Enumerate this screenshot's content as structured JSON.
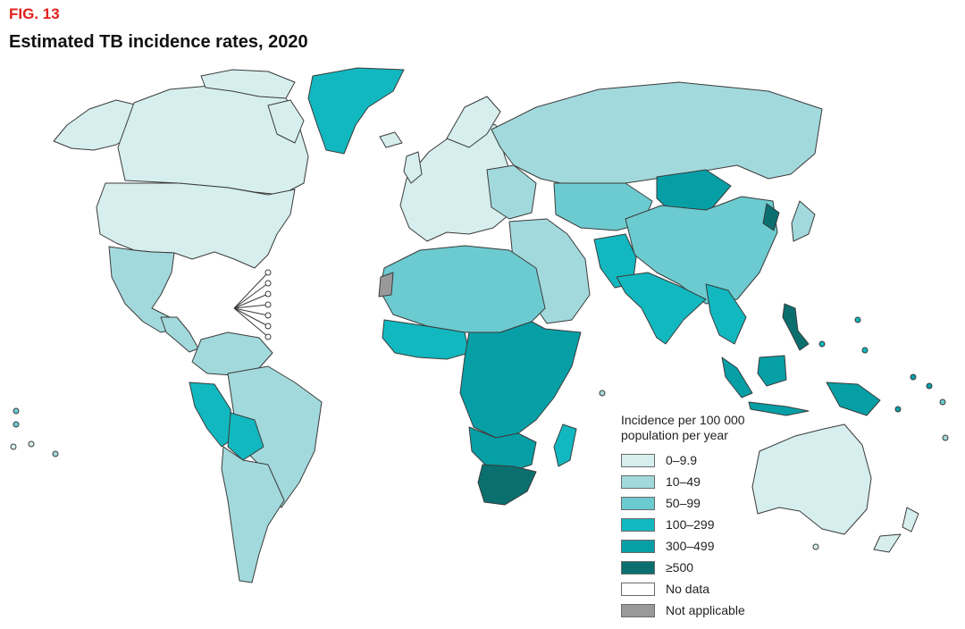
{
  "figure": {
    "label": "FIG. 13",
    "title": "Estimated TB incidence rates, 2020"
  },
  "legend": {
    "title_line1": "Incidence per 100 000",
    "title_line2": "population per year",
    "items": [
      {
        "label": "0–9.9",
        "color": "#d6eeee"
      },
      {
        "label": "10–49",
        "color": "#a2d9dc"
      },
      {
        "label": "50–99",
        "color": "#6ccbd0"
      },
      {
        "label": "100–299",
        "color": "#12b8bf"
      },
      {
        "label": "300–499",
        "color": "#079fa6"
      },
      {
        "label": "≥500",
        "color": "#0b6f70"
      },
      {
        "label": "No data",
        "color": "#ffffff"
      },
      {
        "label": "Not applicable",
        "color": "#999999"
      }
    ]
  },
  "regions": [
    {
      "name": "greenland",
      "class": "100–299"
    },
    {
      "name": "canada",
      "class": "0–9.9"
    },
    {
      "name": "alaska",
      "class": "0–9.9"
    },
    {
      "name": "united-states",
      "class": "0–9.9"
    },
    {
      "name": "mexico",
      "class": "10–49"
    },
    {
      "name": "central-america",
      "class": "10–49"
    },
    {
      "name": "brazil",
      "class": "10–49"
    },
    {
      "name": "peru",
      "class": "100–299"
    },
    {
      "name": "bolivia",
      "class": "100–299"
    },
    {
      "name": "europe",
      "class": "0–9.9"
    },
    {
      "name": "russia",
      "class": "10–49"
    },
    {
      "name": "china",
      "class": "50–99"
    },
    {
      "name": "mongolia",
      "class": "300–499"
    },
    {
      "name": "india",
      "class": "100–299"
    },
    {
      "name": "north-africa",
      "class": "50–99"
    },
    {
      "name": "central-africa",
      "class": "300–499"
    },
    {
      "name": "south-africa",
      "class": "≥500"
    },
    {
      "name": "madagascar",
      "class": "100–299"
    },
    {
      "name": "indonesia",
      "class": "300–499"
    },
    {
      "name": "philippines",
      "class": "≥500"
    },
    {
      "name": "australia",
      "class": "0–9.9"
    },
    {
      "name": "western-sahara",
      "class": "Not applicable"
    }
  ]
}
